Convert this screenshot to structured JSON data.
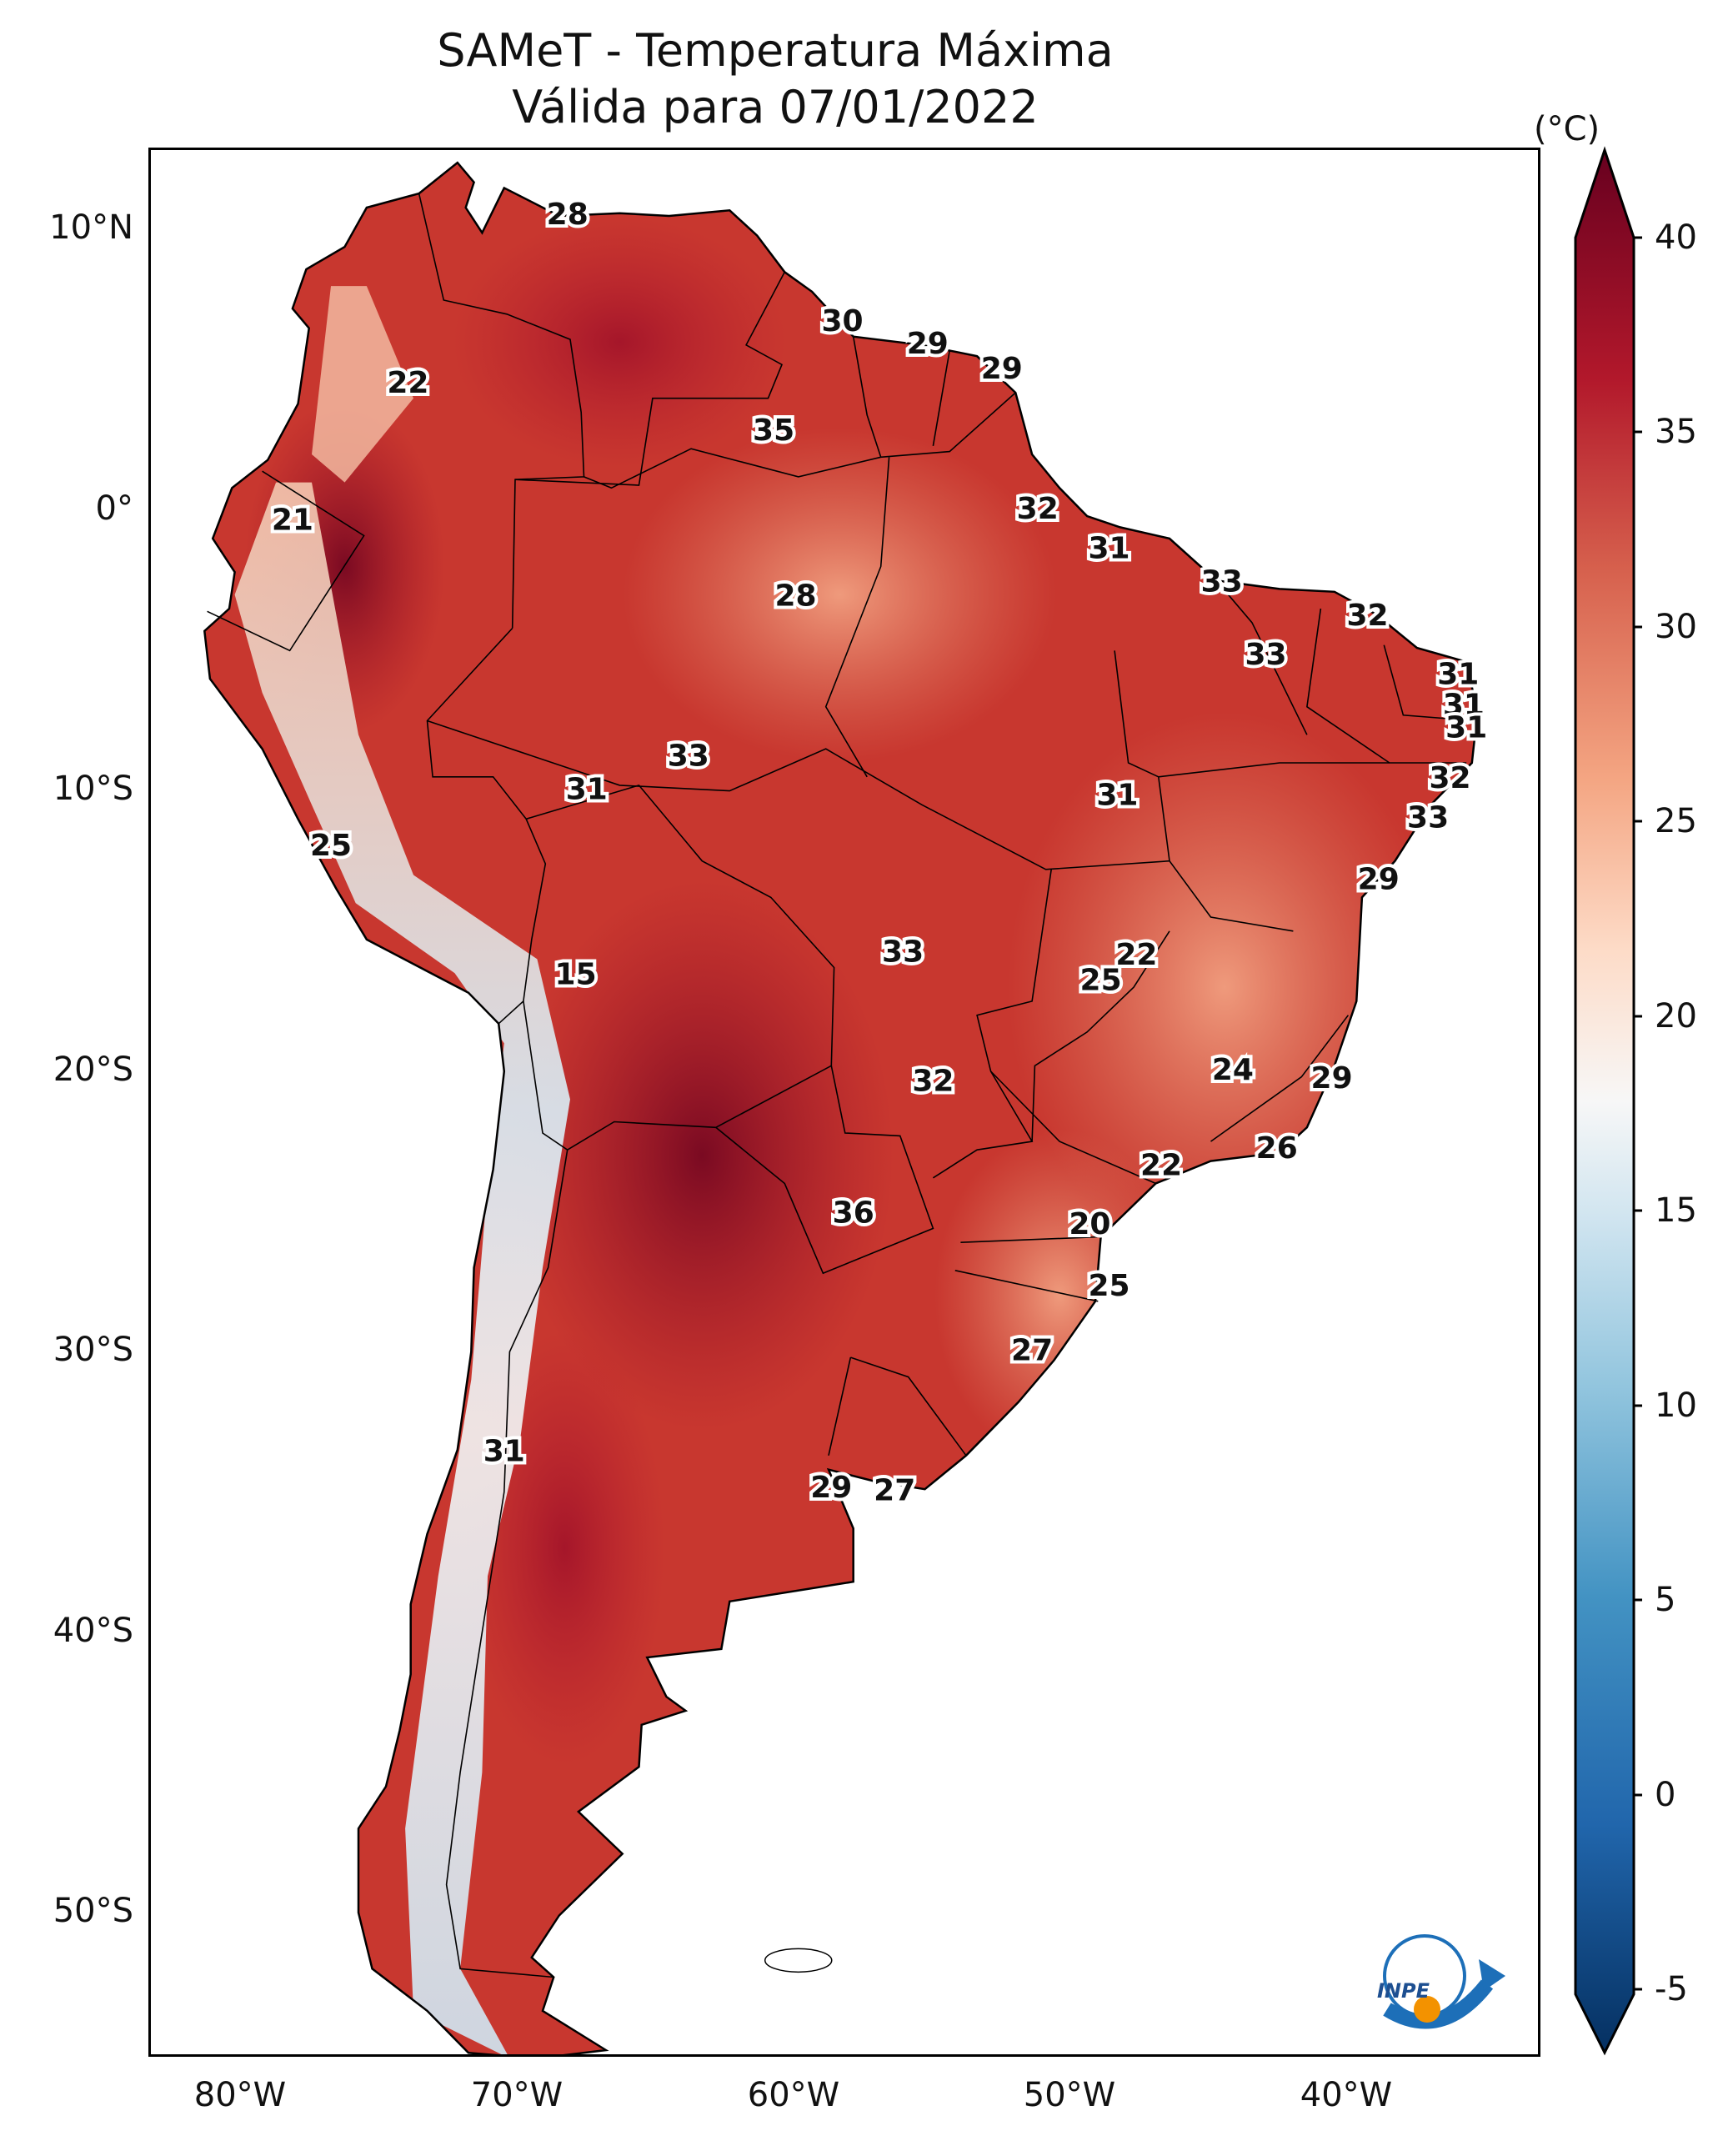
{
  "title": {
    "line1": "SAMeT - Temperatura Máxima",
    "line2": "Válida para 07/01/2022"
  },
  "colorbar": {
    "unit": "(°C)",
    "ticks": [
      "40",
      "35",
      "30",
      "25",
      "20",
      "15",
      "10",
      "5",
      "0",
      "-5"
    ],
    "range": [
      -5,
      40
    ],
    "palette": [
      "#053061",
      "#2166ac",
      "#4393c3",
      "#92c5de",
      "#d1e5f0",
      "#f7f7f7",
      "#fddbc7",
      "#f4a582",
      "#d6604d",
      "#b2182b",
      "#67001f"
    ]
  },
  "axes": {
    "lat_ticks": [
      "10°N",
      "0°",
      "10°S",
      "20°S",
      "30°S",
      "40°S",
      "50°S"
    ],
    "lon_ticks": [
      "80°W",
      "70°W",
      "60°W",
      "50°W",
      "40°W"
    ]
  },
  "labels": [
    {
      "value": "28",
      "lon": -67.9,
      "lat": 10.5
    },
    {
      "value": "30",
      "lon": -57.9,
      "lat": 6.7
    },
    {
      "value": "29",
      "lon": -54.8,
      "lat": 5.9
    },
    {
      "value": "29",
      "lon": -52.1,
      "lat": 5.0
    },
    {
      "value": "22",
      "lon": -73.7,
      "lat": 4.5
    },
    {
      "value": "35",
      "lon": -60.4,
      "lat": 2.8
    },
    {
      "value": "32",
      "lon": -50.8,
      "lat": 0.0
    },
    {
      "value": "21",
      "lon": -77.9,
      "lat": -0.4
    },
    {
      "value": "31",
      "lon": -48.2,
      "lat": -1.4
    },
    {
      "value": "33",
      "lon": -44.1,
      "lat": -2.6
    },
    {
      "value": "28",
      "lon": -59.6,
      "lat": -3.1
    },
    {
      "value": "32",
      "lon": -38.8,
      "lat": -3.8
    },
    {
      "value": "33",
      "lon": -42.5,
      "lat": -5.2
    },
    {
      "value": "31",
      "lon": -35.5,
      "lat": -5.9
    },
    {
      "value": "31",
      "lon": -35.3,
      "lat": -7.0
    },
    {
      "value": "31",
      "lon": -35.2,
      "lat": -7.8
    },
    {
      "value": "33",
      "lon": -63.5,
      "lat": -8.8
    },
    {
      "value": "32",
      "lon": -35.8,
      "lat": -9.6
    },
    {
      "value": "31",
      "lon": -67.2,
      "lat": -10.0
    },
    {
      "value": "31",
      "lon": -47.9,
      "lat": -10.2
    },
    {
      "value": "33",
      "lon": -36.6,
      "lat": -11.0
    },
    {
      "value": "25",
      "lon": -76.5,
      "lat": -12.0
    },
    {
      "value": "29",
      "lon": -38.4,
      "lat": -13.2
    },
    {
      "value": "33",
      "lon": -55.7,
      "lat": -15.8
    },
    {
      "value": "22",
      "lon": -47.2,
      "lat": -15.9
    },
    {
      "value": "25",
      "lon": -48.5,
      "lat": -16.8
    },
    {
      "value": "15",
      "lon": -67.6,
      "lat": -16.6
    },
    {
      "value": "24",
      "lon": -43.7,
      "lat": -20.0
    },
    {
      "value": "29",
      "lon": -40.1,
      "lat": -20.3
    },
    {
      "value": "32",
      "lon": -54.6,
      "lat": -20.4
    },
    {
      "value": "26",
      "lon": -42.1,
      "lat": -22.8
    },
    {
      "value": "22",
      "lon": -46.3,
      "lat": -23.4
    },
    {
      "value": "36",
      "lon": -57.5,
      "lat": -25.1
    },
    {
      "value": "20",
      "lon": -48.9,
      "lat": -25.5
    },
    {
      "value": "25",
      "lon": -48.2,
      "lat": -27.7
    },
    {
      "value": "27",
      "lon": -51.0,
      "lat": -30.0
    },
    {
      "value": "31",
      "lon": -70.2,
      "lat": -33.6
    },
    {
      "value": "29",
      "lon": -58.3,
      "lat": -34.9
    },
    {
      "value": "27",
      "lon": -56.0,
      "lat": -35.0
    }
  ]
}
